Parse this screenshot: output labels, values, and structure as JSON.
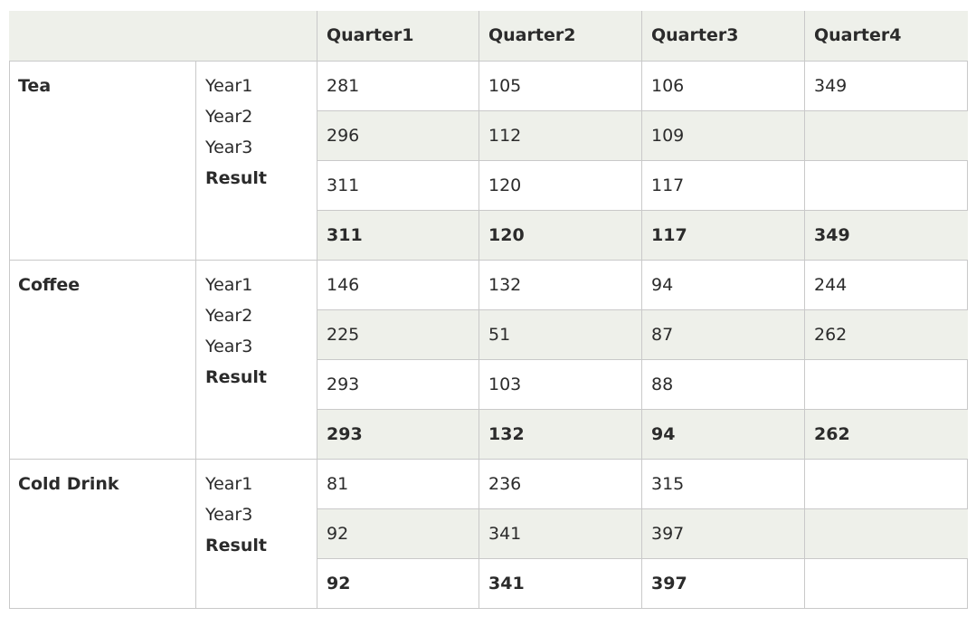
{
  "header": {
    "corner": "",
    "quarters": [
      "Quarter1",
      "Quarter2",
      "Quarter3",
      "Quarter4"
    ]
  },
  "groups": [
    {
      "name": "Tea",
      "labels": [
        "Year1",
        "Year2",
        "Year3",
        "Result"
      ],
      "rows": [
        [
          "281",
          "105",
          "106",
          "349"
        ],
        [
          "296",
          "112",
          "109",
          ""
        ],
        [
          "311",
          "120",
          "117",
          ""
        ],
        [
          "311",
          "120",
          "117",
          "349"
        ]
      ]
    },
    {
      "name": "Coffee",
      "labels": [
        "Year1",
        "Year2",
        "Year3",
        "Result"
      ],
      "rows": [
        [
          "146",
          "132",
          "94",
          "244"
        ],
        [
          "225",
          "51",
          "87",
          "262"
        ],
        [
          "293",
          "103",
          "88",
          ""
        ],
        [
          "293",
          "132",
          "94",
          "262"
        ]
      ]
    },
    {
      "name": "Cold Drink",
      "labels": [
        "Year1",
        "Year3",
        "Result"
      ],
      "rows": [
        [
          "81",
          "236",
          "315",
          ""
        ],
        [
          "92",
          "341",
          "397",
          ""
        ],
        [
          "92",
          "341",
          "397",
          ""
        ]
      ]
    }
  ]
}
